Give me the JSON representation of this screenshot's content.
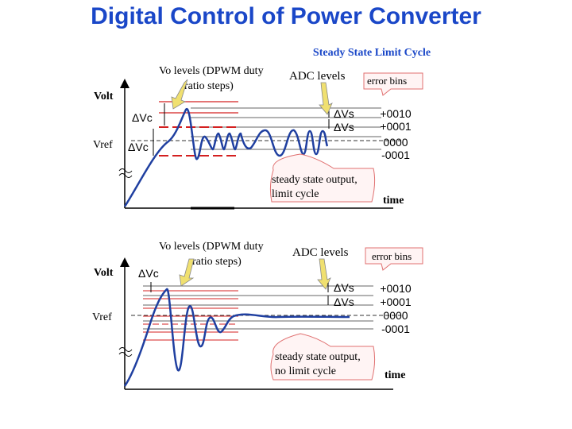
{
  "title": "Digital Control of Power Converter",
  "subtitle": "Steady State Limit Cycle",
  "colors": {
    "title": "#1a47c8",
    "subtitle": "#1a47c8",
    "waveform": "#1f3fa0",
    "vo_levels": "#d42020",
    "adc_levels": "#444444",
    "callout_border": "#e07070",
    "callout_fill": "#fff4f4",
    "arrow_fill": "#f0e070"
  },
  "top_panel": {
    "y_axis_label": "Volt",
    "vref_label": "Vref",
    "vo_levels_label_line1": "Vo levels (DPWM duty",
    "vo_levels_label_line2": "ratio steps)",
    "adc_levels_label": "ADC levels",
    "error_bins_label": "error bins",
    "delta_vc_upper": "ΔVc",
    "delta_vc_lower": "ΔVc",
    "delta_vs_upper": "ΔVs",
    "delta_vs_lower": "ΔVs",
    "error_bins": [
      "+0010",
      "+0001",
      "0000",
      "-0001"
    ],
    "callout_line1": "steady state output,",
    "callout_line2": "limit cycle",
    "x_axis_label": "time"
  },
  "bottom_panel": {
    "y_axis_label": "Volt",
    "vref_label": "Vref",
    "vo_levels_label_line1": "Vo levels (DPWM duty",
    "vo_levels_label_line2": "ratio steps)",
    "adc_levels_label": "ADC levels",
    "error_bins_label": "error bins",
    "delta_vc": "ΔVc",
    "delta_vs_upper": "ΔVs",
    "delta_vs_lower": "ΔVs",
    "error_bins": [
      "+0010",
      "+0001",
      "0000",
      "-0001"
    ],
    "callout_line1": "steady state output,",
    "callout_line2": "no limit cycle",
    "x_axis_label": "time"
  }
}
